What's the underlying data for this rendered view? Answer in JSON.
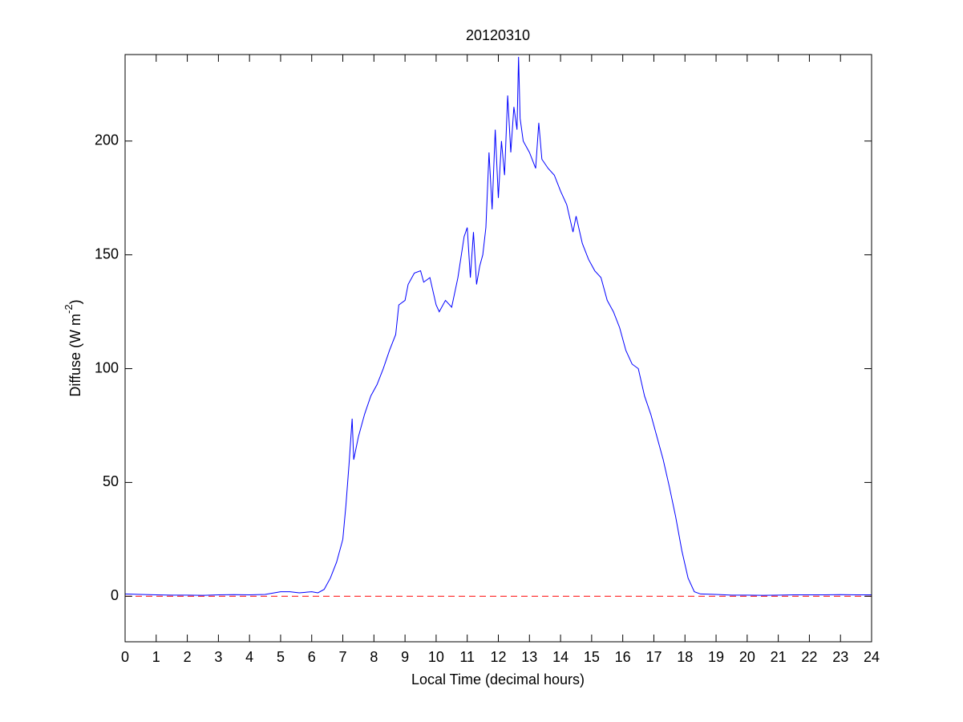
{
  "chart_data": {
    "type": "line",
    "title": "20120310",
    "xlabel": "Local Time (decimal hours)",
    "ylabel": "Diffuse (W m",
    "ylabel_superscript": "-2",
    "ylabel_end": ")",
    "x": [
      0,
      0.5,
      1,
      1.5,
      2,
      2.5,
      3,
      3.5,
      4,
      4.5,
      5,
      5.3,
      5.6,
      6,
      6.2,
      6.4,
      6.6,
      6.8,
      7,
      7.1,
      7.2,
      7.3,
      7.35,
      7.5,
      7.7,
      7.9,
      8.1,
      8.3,
      8.5,
      8.7,
      8.8,
      9,
      9.1,
      9.3,
      9.5,
      9.6,
      9.8,
      10,
      10.1,
      10.3,
      10.5,
      10.7,
      10.9,
      11,
      11.1,
      11.2,
      11.3,
      11.4,
      11.5,
      11.6,
      11.7,
      11.8,
      11.9,
      12,
      12.1,
      12.2,
      12.3,
      12.4,
      12.5,
      12.6,
      12.65,
      12.7,
      12.8,
      13,
      13.2,
      13.3,
      13.4,
      13.6,
      13.8,
      14,
      14.2,
      14.4,
      14.5,
      14.7,
      14.9,
      15.1,
      15.3,
      15.5,
      15.7,
      15.9,
      16.1,
      16.3,
      16.5,
      16.7,
      16.9,
      17.1,
      17.3,
      17.5,
      17.7,
      17.9,
      18.1,
      18.3,
      18.5,
      19,
      19.5,
      20,
      20.5,
      21,
      21.5,
      22,
      22.5,
      23,
      23.5,
      24
    ],
    "series": [
      {
        "name": "Diffuse",
        "color": "#0000ff",
        "values": [
          1,
          0.8,
          0.6,
          0.5,
          0.5,
          0.4,
          0.6,
          0.7,
          0.6,
          0.8,
          2,
          2,
          1.5,
          2,
          1.5,
          3,
          8,
          15,
          25,
          40,
          58,
          78,
          60,
          70,
          80,
          88,
          93,
          100,
          108,
          115,
          128,
          130,
          137,
          142,
          143,
          138,
          140,
          128,
          125,
          130,
          127,
          140,
          158,
          162,
          140,
          160,
          137,
          145,
          150,
          162,
          195,
          170,
          205,
          175,
          200,
          185,
          220,
          195,
          215,
          205,
          237,
          210,
          200,
          195,
          188,
          208,
          192,
          188,
          185,
          178,
          172,
          160,
          167,
          155,
          148,
          143,
          140,
          130,
          125,
          118,
          108,
          102,
          100,
          88,
          80,
          70,
          60,
          48,
          35,
          20,
          8,
          2,
          1,
          0.8,
          0.5,
          0.5,
          0.4,
          0.5,
          0.6,
          0.6,
          0.6,
          0.7,
          0.6,
          0.6
        ]
      }
    ],
    "reference_line": {
      "value": 0,
      "color": "#ff0000",
      "style": "dashed"
    },
    "xlim": [
      0,
      24
    ],
    "xticks": [
      0,
      1,
      2,
      3,
      4,
      5,
      6,
      7,
      8,
      9,
      10,
      11,
      12,
      13,
      14,
      15,
      16,
      17,
      18,
      19,
      20,
      21,
      22,
      23,
      24
    ],
    "ylim": [
      -20,
      238
    ],
    "yticks": [
      0,
      50,
      100,
      150,
      200
    ],
    "grid": false
  }
}
